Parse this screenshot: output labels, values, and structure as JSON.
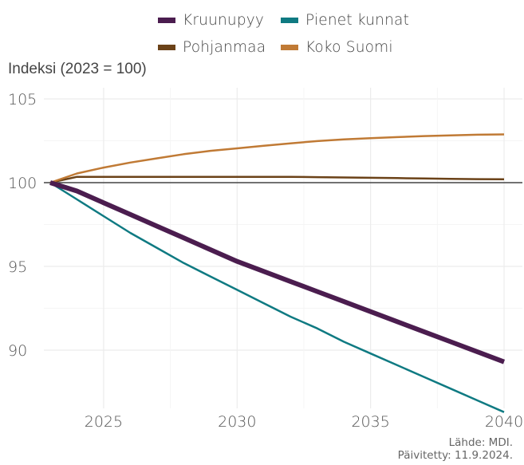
{
  "chart_data": {
    "type": "line",
    "ylabel": "Indeksi (2023 = 100)",
    "xlim": [
      2023,
      2040
    ],
    "ylim": [
      86.5,
      105
    ],
    "x_ticks": [
      2025,
      2030,
      2035,
      2040
    ],
    "y_ticks": [
      90,
      95,
      100,
      105
    ],
    "reference_line": 100,
    "grid": true,
    "legend_position": "top",
    "x": [
      2023,
      2024,
      2025,
      2026,
      2027,
      2028,
      2029,
      2030,
      2031,
      2032,
      2033,
      2034,
      2035,
      2036,
      2037,
      2038,
      2039,
      2040
    ],
    "series": [
      {
        "name": "Kruunupyy",
        "color": "#4b1d4f",
        "width": 6,
        "values": [
          100,
          99.5,
          98.8,
          98.1,
          97.4,
          96.7,
          96.0,
          95.3,
          94.7,
          94.1,
          93.5,
          92.9,
          92.3,
          91.7,
          91.1,
          90.5,
          89.9,
          89.3
        ]
      },
      {
        "name": "Pienet kunnat",
        "color": "#0f7a82",
        "width": 2.5,
        "values": [
          100,
          99.0,
          98.0,
          97.0,
          96.1,
          95.2,
          94.4,
          93.6,
          92.8,
          92.0,
          91.3,
          90.5,
          89.8,
          89.1,
          88.4,
          87.7,
          87.0,
          86.3
        ]
      },
      {
        "name": "Pohjanmaa",
        "color": "#6b4218",
        "width": 2.5,
        "values": [
          100,
          100.35,
          100.35,
          100.35,
          100.35,
          100.35,
          100.35,
          100.35,
          100.35,
          100.35,
          100.33,
          100.31,
          100.29,
          100.27,
          100.25,
          100.23,
          100.21,
          100.2
        ]
      },
      {
        "name": "Koko Suomi",
        "color": "#c07a35",
        "width": 2.5,
        "values": [
          100,
          100.55,
          100.9,
          101.2,
          101.45,
          101.7,
          101.9,
          102.05,
          102.2,
          102.35,
          102.48,
          102.58,
          102.65,
          102.72,
          102.78,
          102.82,
          102.86,
          102.88
        ]
      }
    ]
  },
  "legend": [
    {
      "label": "Kruunupyy",
      "color": "#4b1d4f"
    },
    {
      "label": "Pienet kunnat",
      "color": "#0f7a82"
    },
    {
      "label": "Pohjanmaa",
      "color": "#6b4218"
    },
    {
      "label": "Koko Suomi",
      "color": "#c07a35"
    }
  ],
  "footer": {
    "source": "Lähde: MDI.",
    "updated": "Päivitetty: 11.9.2024."
  }
}
